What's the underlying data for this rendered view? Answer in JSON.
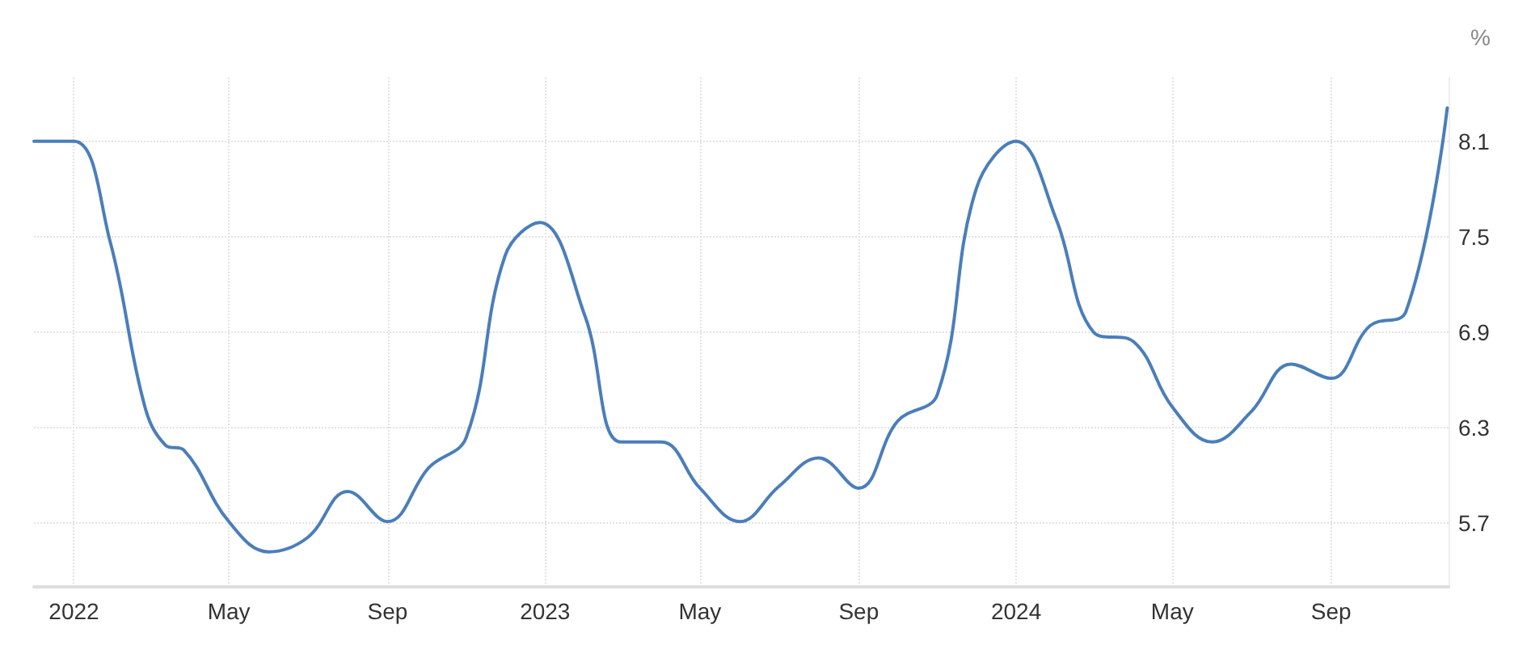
{
  "chart_data": {
    "type": "line",
    "ylabel": "%",
    "color": "#4a7ebb",
    "x": [
      "2021-12-01",
      "2022-01-01",
      "2022-01-29",
      "2022-02-25",
      "2022-03-13",
      "2022-03-27",
      "2022-05-01",
      "2022-06-01",
      "2022-07-01",
      "2022-08-01",
      "2022-09-01",
      "2022-10-03",
      "2022-11-01",
      "2022-12-01",
      "2022-12-28",
      "2023-02-01",
      "2023-03-01",
      "2023-04-01",
      "2023-05-01",
      "2023-06-01",
      "2023-07-01",
      "2023-08-01",
      "2023-09-01",
      "2023-10-01",
      "2023-11-01",
      "2023-12-01",
      "2024-01-01",
      "2024-02-01",
      "2024-03-01",
      "2024-04-01",
      "2024-05-01",
      "2024-06-01",
      "2024-07-01",
      "2024-08-01",
      "2024-09-01",
      "2024-10-01",
      "2024-10-29",
      "2024-11-30"
    ],
    "values": [
      8.1,
      8.1,
      7.47,
      6.43,
      6.19,
      6.16,
      5.71,
      5.52,
      5.61,
      5.9,
      5.71,
      6.05,
      6.24,
      7.38,
      7.59,
      7.0,
      6.21,
      6.21,
      5.92,
      5.71,
      5.93,
      6.11,
      5.92,
      6.34,
      6.51,
      7.8,
      8.1,
      7.61,
      6.9,
      6.84,
      6.43,
      6.21,
      6.4,
      6.7,
      6.61,
      6.94,
      7.03,
      8.31
    ],
    "xlim": [
      "2021-12-01",
      "2024-12-01"
    ],
    "xticks": [
      {
        "value": "2022-01-01",
        "label": "2022"
      },
      {
        "value": "2022-05-01",
        "label": "May"
      },
      {
        "value": "2022-09-01",
        "label": "Sep"
      },
      {
        "value": "2023-01-01",
        "label": "2023"
      },
      {
        "value": "2023-05-01",
        "label": "May"
      },
      {
        "value": "2023-09-01",
        "label": "Sep"
      },
      {
        "value": "2024-01-01",
        "label": "2024"
      },
      {
        "value": "2024-05-01",
        "label": "May"
      },
      {
        "value": "2024-09-01",
        "label": "Sep"
      }
    ],
    "ylim": [
      5.3,
      8.5
    ],
    "yticks": [
      5.7,
      6.3,
      6.9,
      7.5,
      8.1
    ],
    "grid": true,
    "marker": "none",
    "line_style": "solid"
  }
}
